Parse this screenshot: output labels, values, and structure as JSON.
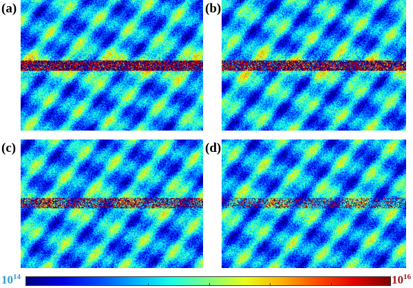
{
  "panels": [
    {
      "label": "(a)",
      "band": 0.5,
      "bandStrength": 1.0
    },
    {
      "label": "(b)",
      "band": 0.5,
      "bandStrength": 0.9
    },
    {
      "label": "(c)",
      "band": 0.49,
      "bandStrength": 0.6
    },
    {
      "label": "(d)",
      "band": 0.49,
      "bandStrength": 0.3
    }
  ],
  "chart_data": {
    "type": "heatmap",
    "colormap": "jet",
    "colorbar": {
      "min_label_base": "10",
      "min_label_exp": "14",
      "max_label_base": "10",
      "max_label_exp": "16",
      "min": 100000000000000.0,
      "max": 1e+16,
      "scale": "log"
    },
    "colors": {
      "min_label": "#2aa0d0",
      "max_label": "#a01818"
    }
  }
}
